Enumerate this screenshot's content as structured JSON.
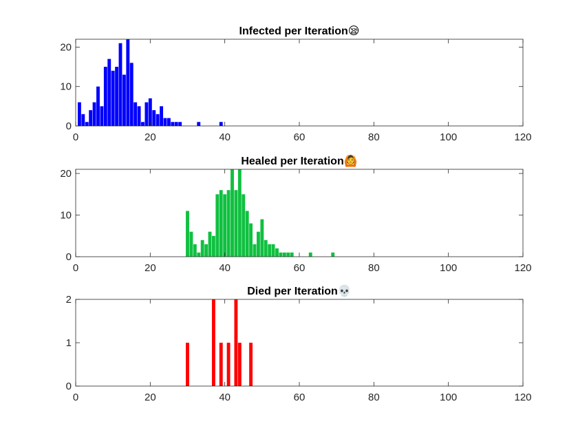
{
  "chart_data": [
    {
      "type": "bar",
      "title": "Infected per Iteration😪",
      "color": "#0000ff",
      "xlim": [
        0,
        120
      ],
      "ylim": [
        0,
        22
      ],
      "xticks": [
        "0",
        "20",
        "40",
        "60",
        "80",
        "100",
        "120"
      ],
      "yticks": [
        "0",
        "10",
        "20"
      ],
      "x": [
        1,
        2,
        3,
        4,
        5,
        6,
        7,
        8,
        9,
        10,
        11,
        12,
        13,
        14,
        15,
        16,
        17,
        18,
        19,
        20,
        21,
        22,
        23,
        24,
        25,
        26,
        27,
        28,
        33,
        39
      ],
      "values": [
        6,
        3,
        1,
        4,
        6,
        10,
        5,
        15,
        17,
        14,
        15,
        21,
        13,
        22,
        16,
        6,
        5,
        1,
        6,
        7,
        4,
        3,
        5,
        2,
        2,
        1,
        1,
        1,
        1,
        1
      ]
    },
    {
      "type": "bar",
      "title": "Healed per Iteration🙆",
      "color": "#10c040",
      "xlim": [
        0,
        120
      ],
      "ylim": [
        0,
        21
      ],
      "xticks": [
        "0",
        "20",
        "40",
        "60",
        "80",
        "100",
        "120"
      ],
      "yticks": [
        "0",
        "10",
        "20"
      ],
      "x": [
        30,
        31,
        32,
        33,
        34,
        35,
        36,
        37,
        38,
        39,
        40,
        41,
        42,
        43,
        44,
        45,
        46,
        47,
        48,
        49,
        50,
        51,
        52,
        53,
        54,
        55,
        56,
        57,
        58,
        63,
        69
      ],
      "values": [
        11,
        6,
        3,
        1,
        4,
        3,
        6,
        5,
        15,
        16,
        15,
        16,
        21,
        16,
        21,
        15,
        11,
        8,
        3,
        6,
        9,
        4,
        3,
        3,
        2,
        1,
        1,
        1,
        1,
        1,
        1
      ]
    },
    {
      "type": "bar",
      "title": "Died per Iteration💀",
      "color": "#ff0000",
      "xlim": [
        0,
        120
      ],
      "ylim": [
        0,
        2
      ],
      "xticks": [
        "0",
        "20",
        "40",
        "60",
        "80",
        "100",
        "120"
      ],
      "yticks": [
        "0",
        "1",
        "2"
      ],
      "x": [
        30,
        37,
        39,
        41,
        43,
        44,
        47
      ],
      "values": [
        1,
        2,
        1,
        1,
        2,
        1,
        1
      ]
    }
  ]
}
